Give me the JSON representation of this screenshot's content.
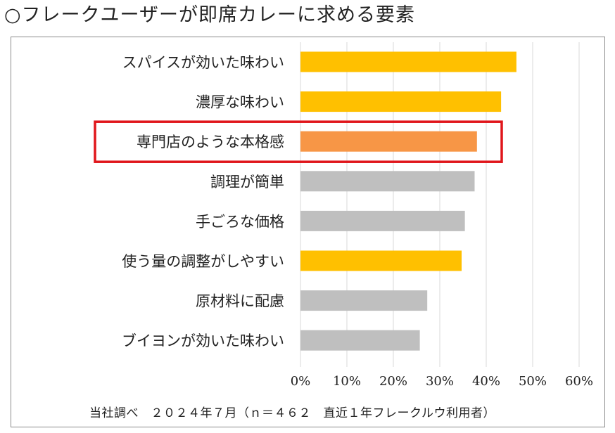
{
  "title": "○フレークユーザーが即席カレーに求める要素",
  "chart_data": {
    "type": "bar",
    "orientation": "horizontal",
    "categories": [
      "スパイスが効いた味わい",
      "濃厚な味わい",
      "専門店のような本格感",
      "調理が簡単",
      "手ごろな価格",
      "使う量の調整がしやすい",
      "原材料に配慮",
      "ブイヨンが効いた味わい"
    ],
    "values": [
      46.5,
      43.2,
      38.0,
      37.5,
      35.4,
      34.7,
      27.3,
      25.7
    ],
    "bar_colors": [
      "#FFC000",
      "#FFC000",
      "#F79646",
      "#BFBFBF",
      "#BFBFBF",
      "#FFC000",
      "#BFBFBF",
      "#BFBFBF"
    ],
    "highlight_index": 2,
    "highlight_color": "#E0161B",
    "xlim": [
      0,
      60
    ],
    "xticks": [
      "0%",
      "10%",
      "20%",
      "30%",
      "40%",
      "50%",
      "60%"
    ],
    "grid": true
  },
  "footnote": "当社調べ　２０２４年７月（ｎ＝４６２　直近１年フレークルウ利用者）"
}
